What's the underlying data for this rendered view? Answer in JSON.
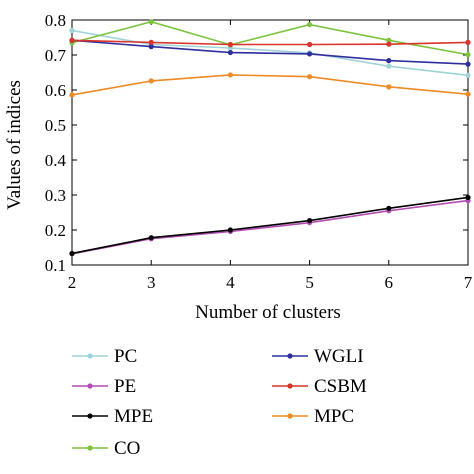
{
  "chart_data": {
    "type": "line",
    "xlabel": "Number of clusters",
    "ylabel": "Values of indices",
    "x": [
      2,
      3,
      4,
      5,
      6,
      7
    ],
    "xlim": [
      2,
      7
    ],
    "ylim": [
      0.1,
      0.8
    ],
    "xticks": [
      "2",
      "3",
      "4",
      "5",
      "6",
      "7"
    ],
    "yticks": [
      "0.1",
      "0.2",
      "0.3",
      "0.4",
      "0.5",
      "0.6",
      "0.7",
      "0.8"
    ],
    "grid": false,
    "legend_position": "bottom",
    "series": [
      {
        "name": "PC",
        "color": "#9fd3d8",
        "values": [
          0.77,
          0.73,
          0.72,
          0.706,
          0.668,
          0.642
        ]
      },
      {
        "name": "PE",
        "color": "#b44bb4",
        "values": [
          0.132,
          0.175,
          0.196,
          0.221,
          0.255,
          0.284
        ]
      },
      {
        "name": "MPE",
        "color": "#000000",
        "values": [
          0.133,
          0.178,
          0.2,
          0.227,
          0.262,
          0.293
        ]
      },
      {
        "name": "CO",
        "color": "#7cc43c",
        "values": [
          0.735,
          0.795,
          0.729,
          0.787,
          0.742,
          0.701
        ]
      },
      {
        "name": "WGLI",
        "color": "#2e2e9e",
        "values": [
          0.742,
          0.724,
          0.707,
          0.703,
          0.684,
          0.674
        ]
      },
      {
        "name": "CSBM",
        "color": "#d9342b",
        "values": [
          0.742,
          0.736,
          0.73,
          0.73,
          0.731,
          0.736
        ]
      },
      {
        "name": "MPC",
        "color": "#ee8a24",
        "values": [
          0.586,
          0.626,
          0.643,
          0.638,
          0.609,
          0.588
        ]
      }
    ]
  }
}
